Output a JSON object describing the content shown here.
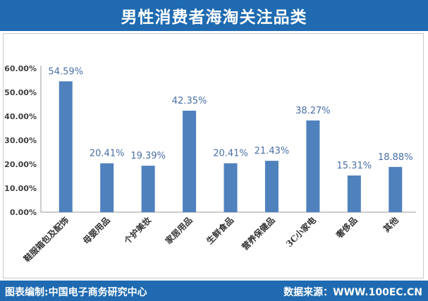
{
  "header": {
    "title": "男性消费者海淘关注品类"
  },
  "footer": {
    "source_left": "图表编制:中国电子商务研究中心",
    "source_right": "数据来源：WWW.100EC.CN"
  },
  "colors": {
    "bar": "#4f81bd",
    "label": "#4a6fa5",
    "axis_text": "#404040",
    "header_bg": "#1f6ab0"
  },
  "chart_data": {
    "type": "bar",
    "title": "男性消费者海淘关注品类",
    "categories": [
      "鞋服箱包及配饰",
      "母婴用品",
      "个护美妆",
      "家居用品",
      "生鲜食品",
      "营养保健品",
      "3C小家电",
      "奢侈品",
      "其他"
    ],
    "values": [
      54.59,
      20.41,
      19.39,
      42.35,
      20.41,
      21.43,
      38.27,
      15.31,
      18.88
    ],
    "data_labels": [
      "54.59%",
      "20.41%",
      "19.39%",
      "42.35%",
      "20.41%",
      "21.43%",
      "38.27%",
      "15.31%",
      "18.88%"
    ],
    "y_ticks": [
      "0.00%",
      "10.00%",
      "20.00%",
      "30.00%",
      "40.00%",
      "50.00%",
      "60.00%"
    ],
    "ylim": [
      0,
      60
    ],
    "xlabel": "",
    "ylabel": "",
    "grid": false,
    "legend": "none"
  }
}
